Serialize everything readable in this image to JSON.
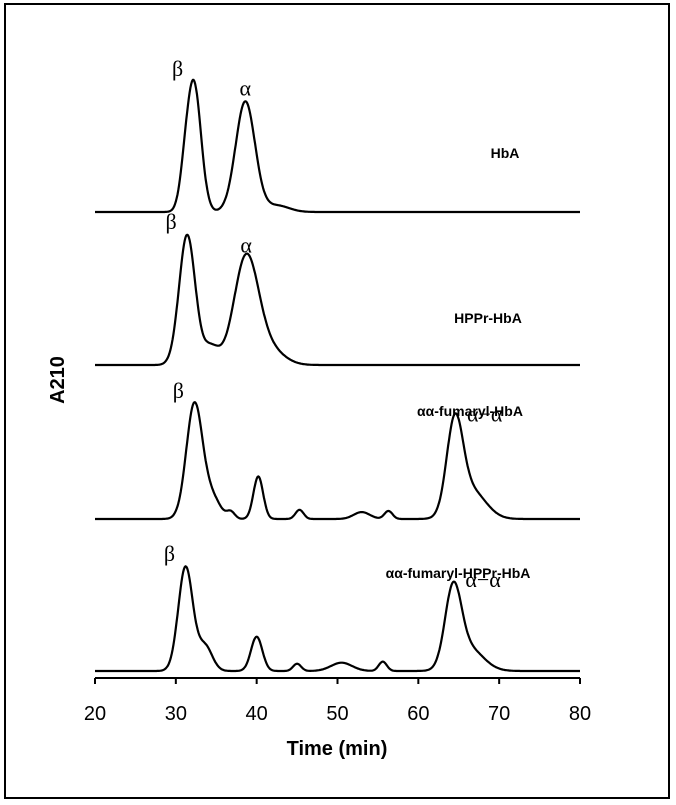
{
  "chart_data": {
    "type": "line",
    "title": "",
    "xlabel": "Time (min)",
    "ylabel": "A210",
    "xlim": [
      20,
      80
    ],
    "xticks": [
      20,
      30,
      40,
      50,
      60,
      70,
      80
    ],
    "grid": false,
    "series": [
      {
        "name": "HbA",
        "peaks": [
          {
            "x": 32.2,
            "height": 1.0,
            "width": 0.9,
            "label": "β"
          },
          {
            "x": 38.6,
            "height": 0.85,
            "width": 1.2,
            "label": "α"
          },
          {
            "x": 31.0,
            "height": 0.12,
            "width": 0.6,
            "label": ""
          },
          {
            "x": 42.5,
            "height": 0.05,
            "width": 1.5,
            "label": ""
          }
        ]
      },
      {
        "name": "HPPr-HbA",
        "peaks": [
          {
            "x": 31.4,
            "height": 1.0,
            "width": 1.0,
            "label": "β"
          },
          {
            "x": 34.3,
            "height": 0.14,
            "width": 1.0,
            "label": ""
          },
          {
            "x": 38.7,
            "height": 0.82,
            "width": 1.5,
            "label": "α"
          },
          {
            "x": 41.5,
            "height": 0.12,
            "width": 1.8,
            "label": ""
          }
        ]
      },
      {
        "name": "αα-fumaryl-HbA",
        "peaks": [
          {
            "x": 32.3,
            "height": 1.0,
            "width": 1.0,
            "label": "β"
          },
          {
            "x": 34.5,
            "height": 0.18,
            "width": 1.0,
            "label": ""
          },
          {
            "x": 36.8,
            "height": 0.06,
            "width": 0.5,
            "label": ""
          },
          {
            "x": 40.2,
            "height": 0.37,
            "width": 0.6,
            "label": ""
          },
          {
            "x": 45.3,
            "height": 0.08,
            "width": 0.5,
            "label": ""
          },
          {
            "x": 53.0,
            "height": 0.06,
            "width": 1.0,
            "label": ""
          },
          {
            "x": 56.3,
            "height": 0.07,
            "width": 0.5,
            "label": ""
          },
          {
            "x": 64.5,
            "height": 0.78,
            "width": 1.0,
            "label": "α−α"
          },
          {
            "x": 66.5,
            "height": 0.25,
            "width": 1.8,
            "label": ""
          }
        ]
      },
      {
        "name": "αα-fumaryl-HPPr-HbA",
        "peaks": [
          {
            "x": 31.2,
            "height": 1.0,
            "width": 0.9,
            "label": "β"
          },
          {
            "x": 33.6,
            "height": 0.24,
            "width": 0.9,
            "label": ""
          },
          {
            "x": 40.0,
            "height": 0.33,
            "width": 0.7,
            "label": ""
          },
          {
            "x": 45.0,
            "height": 0.07,
            "width": 0.5,
            "label": ""
          },
          {
            "x": 50.5,
            "height": 0.08,
            "width": 1.3,
            "label": ""
          },
          {
            "x": 55.6,
            "height": 0.09,
            "width": 0.5,
            "label": ""
          },
          {
            "x": 64.3,
            "height": 0.73,
            "width": 1.0,
            "label": "α−α"
          },
          {
            "x": 66.2,
            "height": 0.22,
            "width": 1.8,
            "label": ""
          }
        ]
      }
    ]
  }
}
